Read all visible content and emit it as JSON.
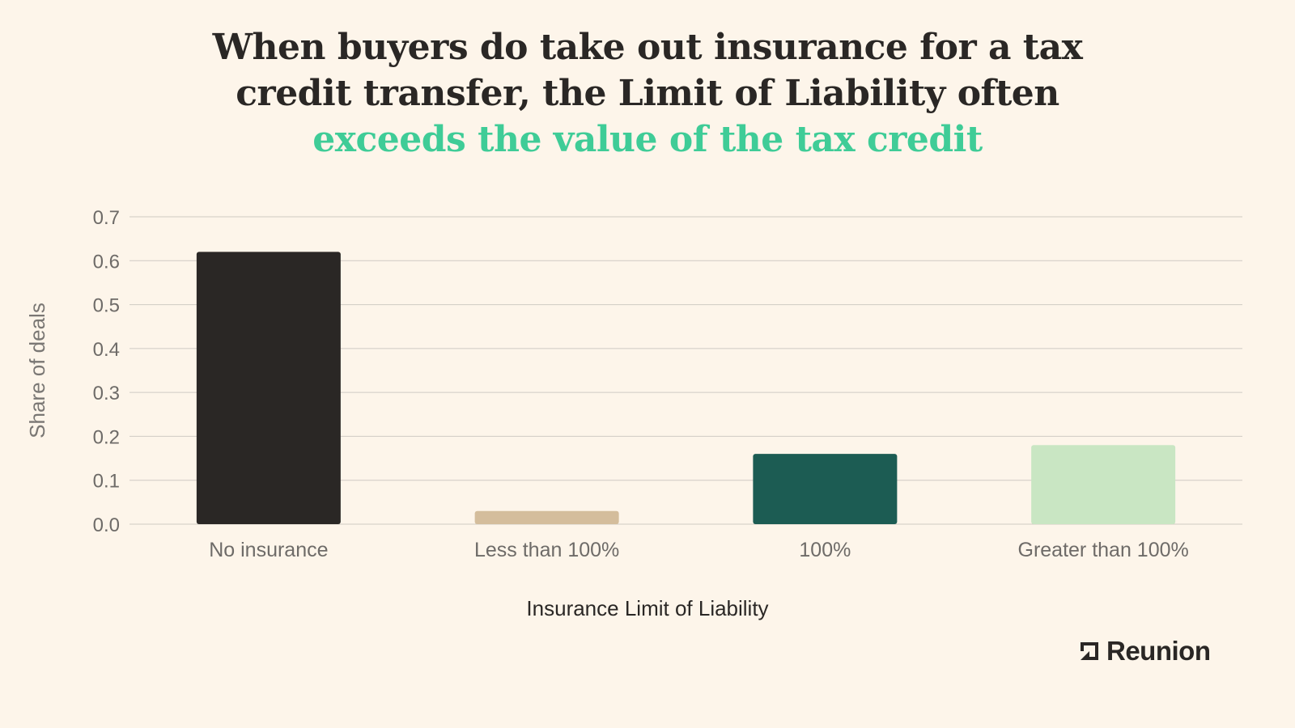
{
  "title": {
    "line1": "When buyers do take out insurance for a tax",
    "line2": "credit transfer, the Limit of Liability often",
    "line3": "exceeds the value of the tax credit"
  },
  "chart_data": {
    "type": "bar",
    "categories": [
      "No insurance",
      "Less than 100%",
      "100%",
      "Greater than 100%"
    ],
    "values": [
      0.62,
      0.03,
      0.16,
      0.18
    ],
    "colors": [
      "#2a2725",
      "#d4bd9c",
      "#1c5c53",
      "#c9e6c3"
    ],
    "xlabel": "Insurance Limit of Liability",
    "ylabel": "Share of deals",
    "ylim": [
      0,
      0.7
    ],
    "yticks": [
      "0.0",
      "0.1",
      "0.2",
      "0.3",
      "0.4",
      "0.5",
      "0.6",
      "0.7"
    ],
    "grid": true,
    "legend": "none"
  },
  "brand": {
    "name": "Reunion",
    "icon": "reunion-logo-icon"
  },
  "colors": {
    "background": "#fdf5ea",
    "accent": "#3fcc97",
    "text": "#2a2725",
    "gridline": "#cfcac3"
  }
}
